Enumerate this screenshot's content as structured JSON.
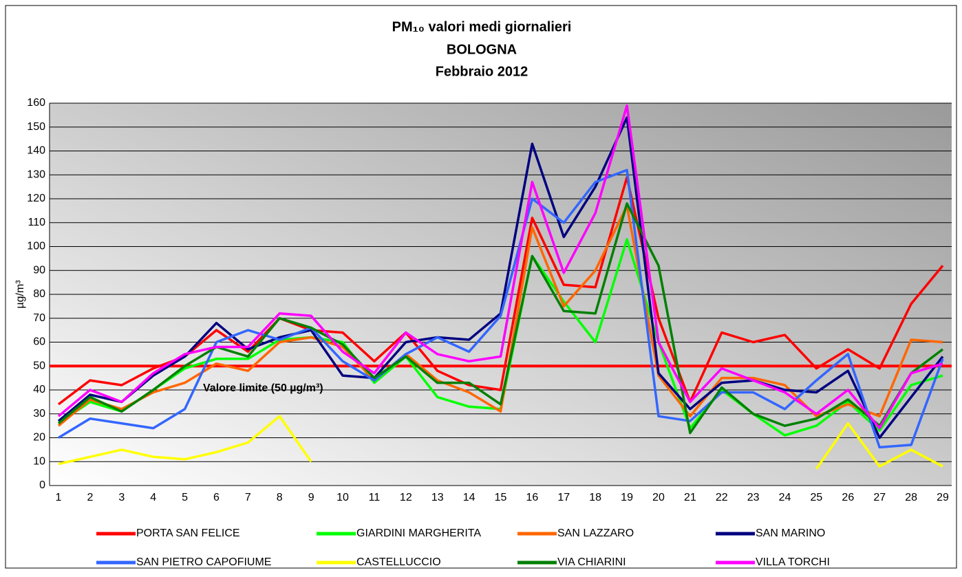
{
  "chart_data": {
    "type": "line",
    "title": "PM₁₀ valori medi giornalieri",
    "subtitle": "BOLOGNA",
    "subtitle2": "Febbraio 2012",
    "y_label": "µg/m³",
    "annotation": "Valore limite  (50 µg/m³)",
    "limit": 50,
    "limit_color": "#ff0000",
    "categories": [
      "1",
      "2",
      "3",
      "4",
      "5",
      "6",
      "7",
      "8",
      "9",
      "10",
      "11",
      "12",
      "13",
      "14",
      "15",
      "16",
      "17",
      "18",
      "19",
      "20",
      "21",
      "22",
      "23",
      "24",
      "25",
      "26",
      "27",
      "28",
      "29"
    ],
    "ylim": [
      0,
      160
    ],
    "yticks": [
      0,
      10,
      20,
      30,
      40,
      50,
      60,
      70,
      80,
      90,
      100,
      110,
      120,
      130,
      140,
      150,
      160
    ],
    "grid": true,
    "series": [
      {
        "name": "PORTA SAN FELICE",
        "color": "#ff0000",
        "values": [
          34,
          44,
          42,
          49,
          54,
          65,
          56,
          70,
          65,
          64,
          52,
          64,
          48,
          42,
          40,
          112,
          84,
          83,
          129,
          70,
          35,
          64,
          60,
          63,
          49,
          57,
          49,
          76,
          92
        ]
      },
      {
        "name": "GIARDINI MARGHERITA",
        "color": "#00ff00",
        "values": [
          26,
          35,
          31,
          40,
          49,
          53,
          53,
          61,
          62,
          60,
          43,
          54,
          37,
          33,
          32,
          96,
          77,
          60,
          103,
          60,
          24,
          40,
          30,
          21,
          25,
          35,
          23,
          42,
          46
        ]
      },
      {
        "name": "SAN LAZZARO",
        "color": "#ff6600",
        "values": [
          25,
          36,
          32,
          39,
          43,
          51,
          48,
          60,
          62,
          58,
          44,
          55,
          44,
          39,
          31,
          108,
          75,
          90,
          117,
          46,
          29,
          45,
          45,
          42,
          29,
          34,
          29,
          61,
          60
        ]
      },
      {
        "name": "SAN MARINO",
        "color": "#000080",
        "values": [
          27,
          38,
          35,
          46,
          54,
          68,
          57,
          62,
          65,
          46,
          45,
          60,
          62,
          61,
          72,
          143,
          104,
          125,
          154,
          47,
          32,
          43,
          44,
          40,
          39,
          48,
          20,
          37,
          54
        ]
      },
      {
        "name": "SAN PIETRO CAPOFIUME",
        "color": "#3366ff",
        "values": [
          20,
          28,
          26,
          24,
          32,
          60,
          65,
          61,
          66,
          52,
          44,
          55,
          62,
          56,
          71,
          120,
          110,
          127,
          132,
          29,
          27,
          39,
          39,
          32,
          44,
          55,
          16,
          17,
          53
        ]
      },
      {
        "name": "CASTELLUCCIO",
        "color": "#ffff00",
        "values": [
          9,
          12,
          15,
          12,
          11,
          14,
          18,
          29,
          10,
          null,
          null,
          null,
          null,
          null,
          null,
          null,
          null,
          null,
          null,
          null,
          null,
          null,
          null,
          null,
          7,
          26,
          8,
          15,
          8
        ]
      },
      {
        "name": "VIA CHIARINI",
        "color": "#008000",
        "values": [
          26,
          37,
          31,
          40,
          50,
          58,
          54,
          70,
          66,
          59,
          45,
          54,
          43,
          43,
          34,
          96,
          73,
          72,
          118,
          92,
          22,
          41,
          30,
          25,
          28,
          36,
          25,
          47,
          57
        ]
      },
      {
        "name": "VILLA TORCHI",
        "color": "#ff00ff",
        "values": [
          29,
          40,
          35,
          47,
          55,
          58,
          58,
          72,
          71,
          56,
          47,
          64,
          55,
          52,
          54,
          127,
          89,
          114,
          159,
          60,
          35,
          49,
          44,
          39,
          30,
          40,
          24,
          47,
          51
        ]
      }
    ]
  }
}
